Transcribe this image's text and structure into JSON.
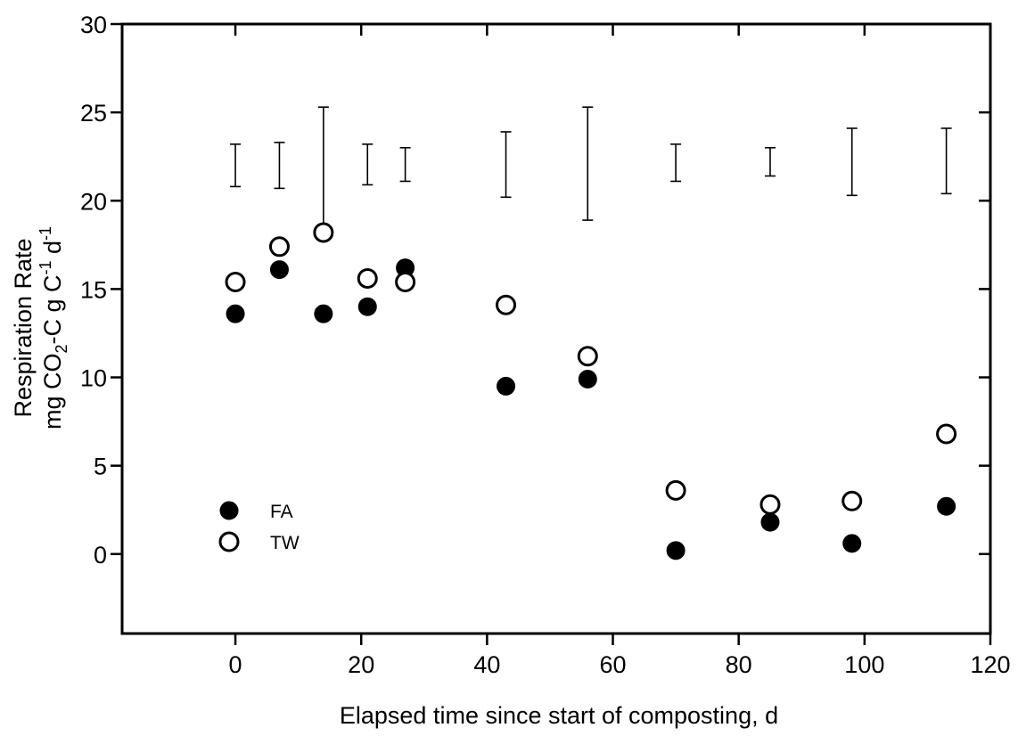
{
  "chart_data": {
    "type": "scatter",
    "title": "",
    "xlabel": "Elapsed time since start of composting, d",
    "ylabel": {
      "line1": "Respiration Rate",
      "line2_parts": [
        "mg CO",
        "2",
        "-C g C",
        "-1",
        " d",
        "-1"
      ]
    },
    "xlim": [
      -18,
      120
    ],
    "ylim": [
      -4.5,
      30
    ],
    "x_ticks": [
      0,
      20,
      40,
      60,
      80,
      100,
      120
    ],
    "y_ticks": [
      0,
      5,
      10,
      15,
      20,
      25,
      30
    ],
    "grid": false,
    "legend_position": "lower-left",
    "series": [
      {
        "name": "FA",
        "marker": "filled-circle",
        "color": "#000000",
        "points": [
          {
            "x": 0,
            "y": 13.6
          },
          {
            "x": 7,
            "y": 16.1
          },
          {
            "x": 14,
            "y": 13.6
          },
          {
            "x": 21,
            "y": 14.0
          },
          {
            "x": 27,
            "y": 16.2
          },
          {
            "x": 43,
            "y": 9.5
          },
          {
            "x": 56,
            "y": 9.9
          },
          {
            "x": 70,
            "y": 0.2
          },
          {
            "x": 85,
            "y": 1.8
          },
          {
            "x": 98,
            "y": 0.6
          },
          {
            "x": 113,
            "y": 2.7
          }
        ]
      },
      {
        "name": "TW",
        "marker": "open-circle",
        "color": "#000000",
        "points": [
          {
            "x": 0,
            "y": 15.4
          },
          {
            "x": 7,
            "y": 17.4
          },
          {
            "x": 14,
            "y": 18.2
          },
          {
            "x": 21,
            "y": 15.6
          },
          {
            "x": 27,
            "y": 15.4
          },
          {
            "x": 43,
            "y": 14.1
          },
          {
            "x": 56,
            "y": 11.2
          },
          {
            "x": 70,
            "y": 3.6
          },
          {
            "x": 85,
            "y": 2.8
          },
          {
            "x": 98,
            "y": 3.0
          },
          {
            "x": 113,
            "y": 6.8
          }
        ]
      }
    ],
    "error_bars": [
      {
        "x": 0,
        "low": 20.8,
        "high": 23.2
      },
      {
        "x": 7,
        "low": 20.7,
        "high": 23.3
      },
      {
        "x": 14,
        "low": 18.5,
        "high": 25.3
      },
      {
        "x": 21,
        "low": 20.9,
        "high": 23.2
      },
      {
        "x": 27,
        "low": 21.1,
        "high": 23.0
      },
      {
        "x": 43,
        "low": 20.2,
        "high": 23.9
      },
      {
        "x": 56,
        "low": 18.9,
        "high": 25.3
      },
      {
        "x": 70,
        "low": 21.1,
        "high": 23.2
      },
      {
        "x": 85,
        "low": 21.4,
        "high": 23.0
      },
      {
        "x": 98,
        "low": 20.3,
        "high": 24.1
      },
      {
        "x": 113,
        "low": 20.4,
        "high": 24.1
      }
    ]
  }
}
